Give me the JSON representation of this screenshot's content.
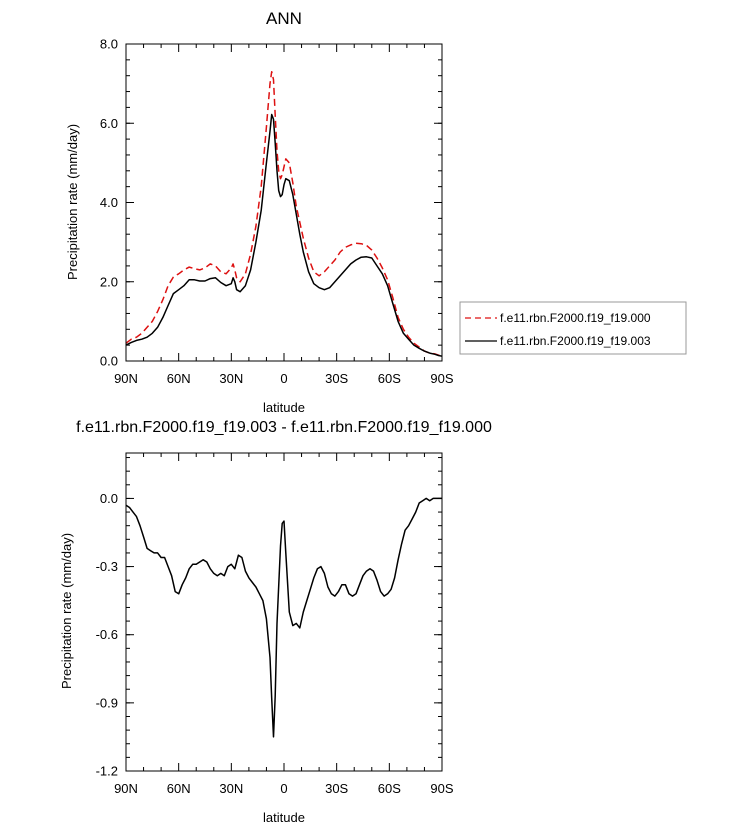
{
  "chart_data": [
    {
      "type": "line",
      "title": "ANN",
      "xlabel": "latitude",
      "ylabel": "Precipitation rate (mm/day)",
      "xlim": [
        90,
        -90
      ],
      "ylim": [
        0,
        8
      ],
      "x_ticks": [
        90,
        60,
        30,
        0,
        -30,
        -60,
        -90
      ],
      "x_tick_labels": [
        "90N",
        "60N",
        "30N",
        "0",
        "30S",
        "60S",
        "90S"
      ],
      "y_ticks": [
        0,
        2,
        4,
        6,
        8
      ],
      "y_tick_labels": [
        "0.0",
        "2.0",
        "4.0",
        "6.0",
        "8.0"
      ],
      "legend": "right",
      "colors": {
        "series_000": "#dd1111",
        "series_003": "#000000"
      },
      "series": [
        {
          "name": "f.e11.rbn.F2000.f19_f19.000",
          "style": "dashed",
          "x": [
            90,
            87,
            84,
            81,
            78,
            75,
            72,
            69,
            66,
            63,
            60,
            57,
            54,
            51,
            48,
            45,
            42,
            39,
            36,
            33,
            30,
            29,
            28,
            27,
            25,
            22,
            19,
            16,
            13,
            10,
            8,
            7,
            6,
            5,
            4,
            3,
            2,
            1,
            0,
            -1,
            -3,
            -5,
            -7,
            -9,
            -11,
            -14,
            -17,
            -20,
            -23,
            -26,
            -29,
            -32,
            -35,
            -38,
            -41,
            -44,
            -47,
            -50,
            -53,
            -56,
            -59,
            -62,
            -65,
            -68,
            -71,
            -74,
            -77,
            -80,
            -83,
            -86,
            -88,
            -90
          ],
          "y": [
            0.45,
            0.55,
            0.6,
            0.7,
            0.85,
            1.0,
            1.25,
            1.55,
            1.9,
            2.12,
            2.2,
            2.3,
            2.37,
            2.33,
            2.3,
            2.35,
            2.45,
            2.4,
            2.25,
            2.2,
            2.35,
            2.45,
            2.3,
            2.1,
            2.0,
            2.2,
            2.7,
            3.4,
            4.4,
            5.9,
            7.0,
            7.3,
            7.1,
            6.2,
            5.3,
            4.8,
            4.6,
            4.7,
            4.9,
            5.1,
            5.0,
            4.5,
            3.9,
            3.5,
            3.1,
            2.6,
            2.25,
            2.15,
            2.25,
            2.4,
            2.55,
            2.75,
            2.87,
            2.93,
            2.97,
            2.96,
            2.92,
            2.8,
            2.6,
            2.35,
            2.05,
            1.6,
            1.1,
            0.8,
            0.6,
            0.45,
            0.35,
            0.25,
            0.2,
            0.18,
            0.15,
            0.12
          ]
        },
        {
          "name": "f.e11.rbn.F2000.f19_f19.003",
          "style": "solid",
          "x": [
            90,
            87,
            84,
            81,
            78,
            75,
            72,
            69,
            66,
            63,
            60,
            57,
            54,
            51,
            48,
            45,
            42,
            39,
            36,
            33,
            30,
            29,
            28,
            27,
            25,
            22,
            19,
            16,
            13,
            10,
            8,
            7,
            6,
            5,
            4,
            3,
            2,
            1,
            0,
            -1,
            -3,
            -5,
            -7,
            -9,
            -11,
            -14,
            -17,
            -20,
            -23,
            -26,
            -29,
            -32,
            -35,
            -38,
            -41,
            -44,
            -47,
            -50,
            -53,
            -56,
            -59,
            -62,
            -65,
            -68,
            -71,
            -74,
            -77,
            -80,
            -83,
            -86,
            -88,
            -90
          ],
          "y": [
            0.4,
            0.47,
            0.52,
            0.55,
            0.6,
            0.7,
            0.85,
            1.1,
            1.4,
            1.7,
            1.8,
            1.9,
            2.05,
            2.05,
            2.02,
            2.02,
            2.08,
            2.1,
            1.98,
            1.9,
            1.95,
            2.1,
            2.0,
            1.8,
            1.75,
            1.9,
            2.3,
            3.0,
            3.8,
            5.0,
            5.8,
            6.22,
            6.1,
            5.5,
            4.8,
            4.3,
            4.15,
            4.2,
            4.45,
            4.6,
            4.55,
            4.2,
            3.7,
            3.2,
            2.75,
            2.25,
            1.95,
            1.85,
            1.8,
            1.85,
            2.0,
            2.15,
            2.3,
            2.45,
            2.55,
            2.62,
            2.63,
            2.6,
            2.4,
            2.2,
            1.9,
            1.45,
            1.0,
            0.7,
            0.55,
            0.4,
            0.32,
            0.25,
            0.2,
            0.17,
            0.14,
            0.12
          ]
        }
      ]
    },
    {
      "type": "line",
      "title": "f.e11.rbn.F2000.f19_f19.003 - f.e11.rbn.F2000.f19_f19.000",
      "xlabel": "latitude",
      "ylabel": "Precipitation rate (mm/day)",
      "xlim": [
        90,
        -90
      ],
      "ylim": [
        -1.2,
        0.2
      ],
      "x_ticks": [
        90,
        60,
        30,
        0,
        -30,
        -60,
        -90
      ],
      "x_tick_labels": [
        "90N",
        "60N",
        "30N",
        "0",
        "30S",
        "60S",
        "90S"
      ],
      "y_ticks": [
        0,
        -0.3,
        -0.6,
        -0.9,
        -1.2
      ],
      "y_tick_labels": [
        "0.0",
        "-0.3",
        "-0.6",
        "-0.9",
        "-1.2"
      ],
      "colors": {
        "diff": "#000000"
      },
      "series": [
        {
          "style": "solid",
          "x": [
            90,
            88,
            86,
            84,
            82,
            80,
            78,
            76,
            74,
            72,
            70,
            68,
            66,
            64,
            62,
            60,
            58,
            56,
            54,
            52,
            50,
            48,
            46,
            44,
            42,
            40,
            38,
            36,
            34,
            32,
            30,
            28,
            27,
            26,
            24,
            22,
            20,
            18,
            16,
            14,
            12,
            10,
            8,
            7,
            6,
            5,
            4,
            2,
            1,
            0,
            -1,
            -3,
            -5,
            -7,
            -9,
            -11,
            -13,
            -15,
            -17,
            -19,
            -21,
            -23,
            -25,
            -27,
            -29,
            -31,
            -33,
            -35,
            -37,
            -39,
            -41,
            -43,
            -45,
            -47,
            -49,
            -51,
            -53,
            -55,
            -57,
            -59,
            -61,
            -63,
            -65,
            -67,
            -69,
            -71,
            -73,
            -75,
            -77,
            -79,
            -81,
            -83,
            -85,
            -87,
            -90
          ],
          "y": [
            -0.03,
            -0.04,
            -0.06,
            -0.08,
            -0.12,
            -0.17,
            -0.22,
            -0.23,
            -0.24,
            -0.24,
            -0.26,
            -0.26,
            -0.3,
            -0.34,
            -0.41,
            -0.42,
            -0.38,
            -0.35,
            -0.31,
            -0.29,
            -0.29,
            -0.28,
            -0.27,
            -0.28,
            -0.31,
            -0.33,
            -0.34,
            -0.33,
            -0.34,
            -0.3,
            -0.29,
            -0.31,
            -0.28,
            -0.25,
            -0.26,
            -0.32,
            -0.35,
            -0.37,
            -0.39,
            -0.42,
            -0.45,
            -0.53,
            -0.7,
            -0.88,
            -1.05,
            -0.87,
            -0.55,
            -0.21,
            -0.11,
            -0.1,
            -0.24,
            -0.5,
            -0.56,
            -0.55,
            -0.57,
            -0.5,
            -0.45,
            -0.4,
            -0.35,
            -0.31,
            -0.3,
            -0.33,
            -0.39,
            -0.42,
            -0.43,
            -0.41,
            -0.38,
            -0.38,
            -0.42,
            -0.43,
            -0.42,
            -0.38,
            -0.34,
            -0.32,
            -0.31,
            -0.32,
            -0.36,
            -0.41,
            -0.43,
            -0.42,
            -0.4,
            -0.35,
            -0.27,
            -0.2,
            -0.14,
            -0.12,
            -0.09,
            -0.06,
            -0.02,
            -0.01,
            0.0,
            -0.01,
            0.0,
            0.0,
            0.0
          ]
        }
      ]
    }
  ]
}
